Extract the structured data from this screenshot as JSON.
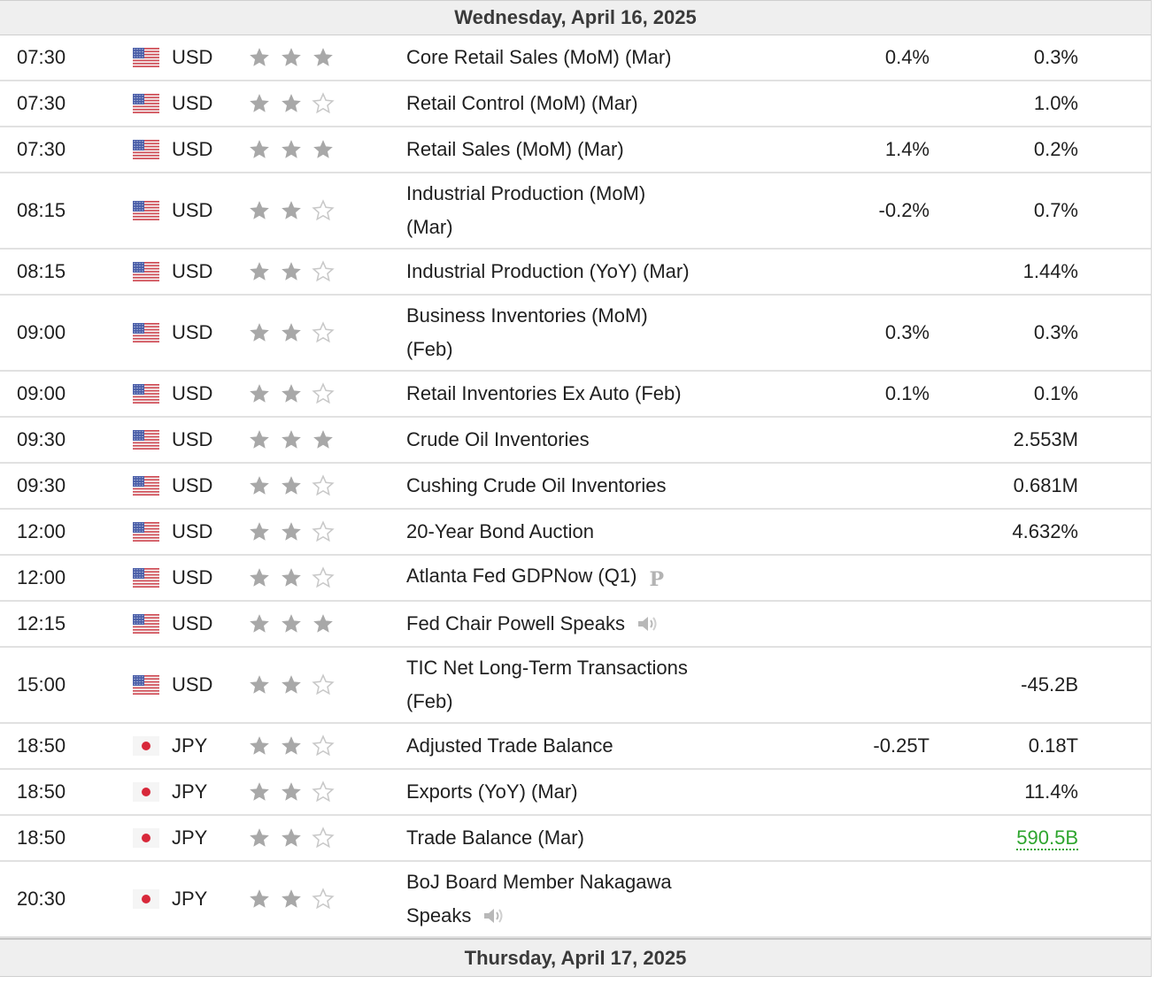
{
  "top_header": "Wednesday, April 16, 2025",
  "bottom_header": "Thursday, April 17, 2025",
  "colors": {
    "star_filled": "#a8a8a8",
    "star_empty": "#c8c8c8",
    "positive": "#2ea52e"
  },
  "events": [
    {
      "time": "07:30",
      "flag": "us-flag-icon",
      "currency": "USD",
      "stars": 3,
      "lines": [
        "Core Retail Sales (MoM) (Mar)"
      ],
      "forecast": "0.4%",
      "previous": "0.3%"
    },
    {
      "time": "07:30",
      "flag": "us-flag-icon",
      "currency": "USD",
      "stars": 2,
      "lines": [
        "Retail Control (MoM) (Mar)"
      ],
      "forecast": "",
      "previous": "1.0%"
    },
    {
      "time": "07:30",
      "flag": "us-flag-icon",
      "currency": "USD",
      "stars": 3,
      "lines": [
        "Retail Sales (MoM) (Mar)"
      ],
      "forecast": "1.4%",
      "previous": "0.2%"
    },
    {
      "time": "08:15",
      "flag": "us-flag-icon",
      "currency": "USD",
      "stars": 2,
      "lines": [
        "Industrial Production (MoM)",
        "(Mar)"
      ],
      "forecast": "-0.2%",
      "previous": "0.7%"
    },
    {
      "time": "08:15",
      "flag": "us-flag-icon",
      "currency": "USD",
      "stars": 2,
      "lines": [
        "Industrial Production (YoY) (Mar)"
      ],
      "forecast": "",
      "previous": "1.44%"
    },
    {
      "time": "09:00",
      "flag": "us-flag-icon",
      "currency": "USD",
      "stars": 2,
      "lines": [
        "Business Inventories (MoM)",
        "(Feb)"
      ],
      "forecast": "0.3%",
      "previous": "0.3%"
    },
    {
      "time": "09:00",
      "flag": "us-flag-icon",
      "currency": "USD",
      "stars": 2,
      "lines": [
        "Retail Inventories Ex Auto (Feb)"
      ],
      "forecast": "0.1%",
      "previous": "0.1%"
    },
    {
      "time": "09:30",
      "flag": "us-flag-icon",
      "currency": "USD",
      "stars": 3,
      "lines": [
        "Crude Oil Inventories"
      ],
      "forecast": "",
      "previous": "2.553M"
    },
    {
      "time": "09:30",
      "flag": "us-flag-icon",
      "currency": "USD",
      "stars": 2,
      "lines": [
        "Cushing Crude Oil Inventories"
      ],
      "forecast": "",
      "previous": "0.681M"
    },
    {
      "time": "12:00",
      "flag": "us-flag-icon",
      "currency": "USD",
      "stars": 2,
      "lines": [
        "20-Year Bond Auction"
      ],
      "forecast": "",
      "previous": "4.632%"
    },
    {
      "time": "12:00",
      "flag": "us-flag-icon",
      "currency": "USD",
      "stars": 2,
      "lines": [
        "Atlanta Fed GDPNow (Q1)"
      ],
      "icon": "preliminary-icon",
      "icon_text": "P",
      "forecast": "",
      "previous": ""
    },
    {
      "time": "12:15",
      "flag": "us-flag-icon",
      "currency": "USD",
      "stars": 3,
      "lines": [
        "Fed Chair Powell Speaks"
      ],
      "icon": "speaker-icon",
      "forecast": "",
      "previous": ""
    },
    {
      "time": "15:00",
      "flag": "us-flag-icon",
      "currency": "USD",
      "stars": 2,
      "lines": [
        "TIC Net Long-Term Transactions",
        "(Feb)"
      ],
      "forecast": "",
      "previous": "-45.2B"
    },
    {
      "time": "18:50",
      "flag": "jp-flag-icon",
      "currency": "JPY",
      "stars": 2,
      "lines": [
        "Adjusted Trade Balance"
      ],
      "forecast": "-0.25T",
      "previous": "0.18T"
    },
    {
      "time": "18:50",
      "flag": "jp-flag-icon",
      "currency": "JPY",
      "stars": 2,
      "lines": [
        "Exports (YoY) (Mar)"
      ],
      "forecast": "",
      "previous": "11.4%"
    },
    {
      "time": "18:50",
      "flag": "jp-flag-icon",
      "currency": "JPY",
      "stars": 2,
      "lines": [
        "Trade Balance (Mar)"
      ],
      "forecast": "",
      "previous": "590.5B",
      "previous_color": "green"
    },
    {
      "time": "20:30",
      "flag": "jp-flag-icon",
      "currency": "JPY",
      "stars": 2,
      "lines": [
        "BoJ Board Member Nakagawa",
        "Speaks"
      ],
      "icon": "speaker-icon",
      "forecast": "",
      "previous": ""
    }
  ]
}
